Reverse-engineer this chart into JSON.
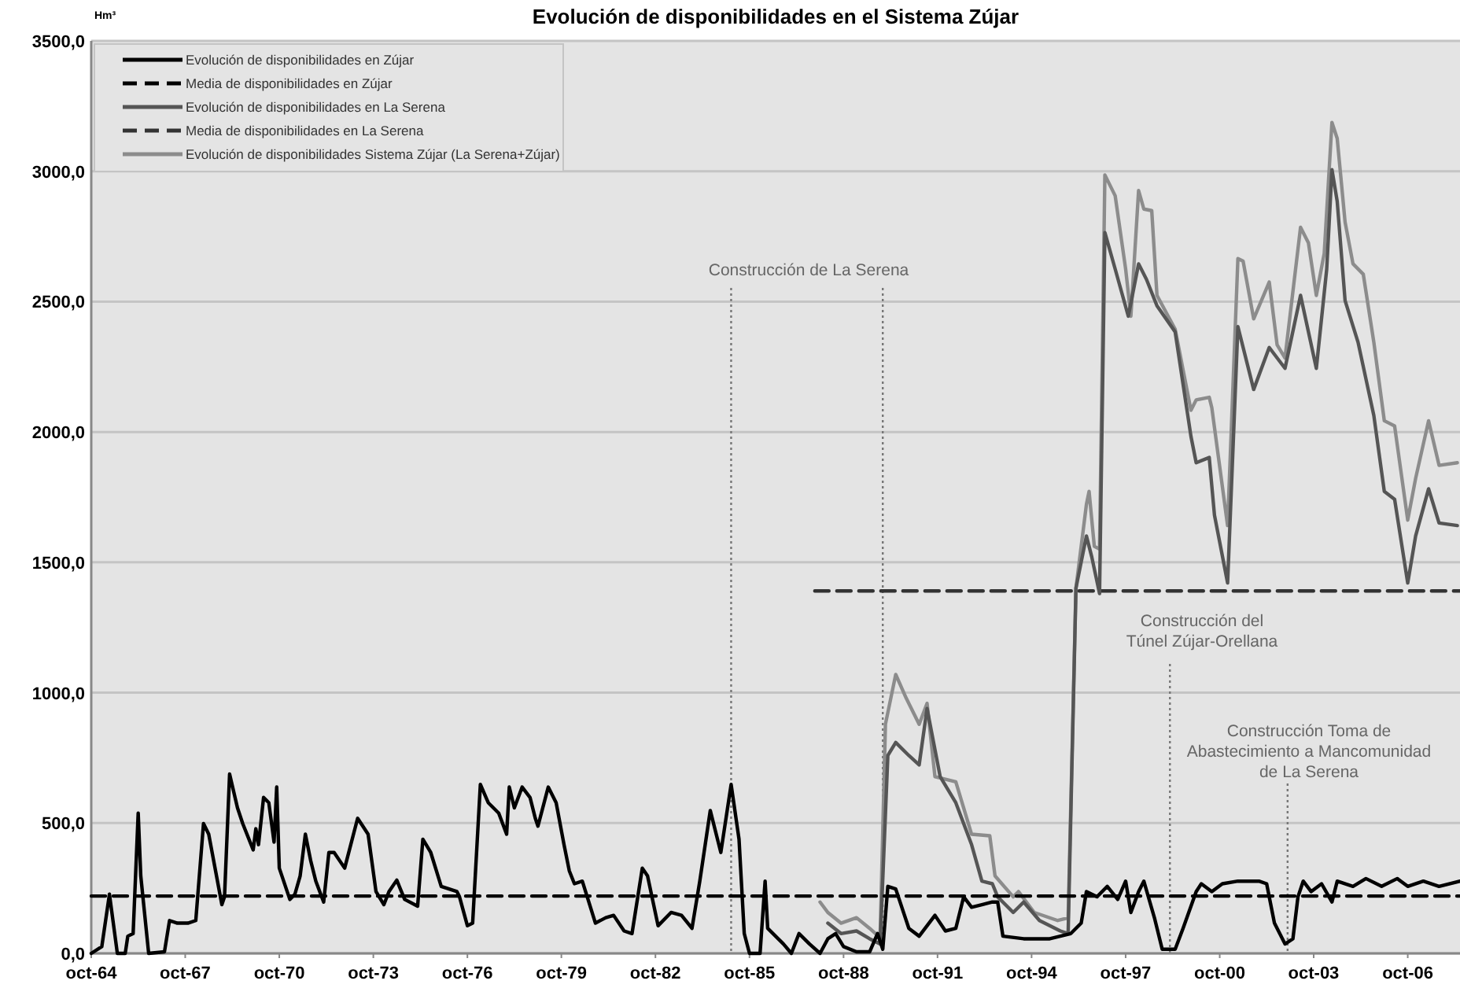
{
  "chart_data": {
    "type": "line",
    "title": "Evolución de disponibilidades en el Sistema Zújar",
    "ylabel": "Hm³",
    "xlim": [
      "1964-10",
      "2008-06"
    ],
    "ylim": [
      0,
      3500
    ],
    "xticks": [
      {
        "value": "1964-10",
        "label": "oct-64"
      },
      {
        "value": "1967-10",
        "label": "oct-67"
      },
      {
        "value": "1970-10",
        "label": "oct-70"
      },
      {
        "value": "1973-10",
        "label": "oct-73"
      },
      {
        "value": "1976-10",
        "label": "oct-76"
      },
      {
        "value": "1979-10",
        "label": "oct-79"
      },
      {
        "value": "1982-10",
        "label": "oct-82"
      },
      {
        "value": "1985-10",
        "label": "oct-85"
      },
      {
        "value": "1988-10",
        "label": "oct-88"
      },
      {
        "value": "1991-10",
        "label": "oct-91"
      },
      {
        "value": "1994-10",
        "label": "oct-94"
      },
      {
        "value": "1997-10",
        "label": "oct-97"
      },
      {
        "value": "2000-10",
        "label": "oct-00"
      },
      {
        "value": "2003-10",
        "label": "oct-03"
      },
      {
        "value": "2006-10",
        "label": "oct-06"
      }
    ],
    "yticks": [
      {
        "value": 0,
        "label": "0,0"
      },
      {
        "value": 500,
        "label": "500,0"
      },
      {
        "value": 1000,
        "label": "1000,0"
      },
      {
        "value": 1500,
        "label": "1500,0"
      },
      {
        "value": 2000,
        "label": "2000,0"
      },
      {
        "value": 2500,
        "label": "2500,0"
      },
      {
        "value": 3000,
        "label": "3000,0"
      },
      {
        "value": 3500,
        "label": "3500,0"
      }
    ],
    "grid": "y",
    "legend": "top left",
    "line_style": "solid",
    "series": [
      {
        "name": "Evolución de disponibilidades en Zújar",
        "color": "#000000",
        "x": [
          "1964-10",
          "1965-02",
          "1965-05",
          "1965-08",
          "1965-11",
          "1965-12",
          "1966-02",
          "1966-04",
          "1966-05",
          "1966-06",
          "1966-08",
          "1967-02",
          "1967-04",
          "1967-07",
          "1967-11",
          "1968-02",
          "1968-05",
          "1968-07",
          "1968-12",
          "1969-01",
          "1969-03",
          "1969-06",
          "1969-08",
          "1969-12",
          "1970-01",
          "1970-02",
          "1970-04",
          "1970-06",
          "1970-08",
          "1970-09",
          "1970-10",
          "1971-02",
          "1971-04",
          "1971-06",
          "1971-08",
          "1971-10",
          "1971-12",
          "1972-03",
          "1972-05",
          "1972-07",
          "1972-11",
          "1973-04",
          "1973-08",
          "1973-11",
          "1974-02",
          "1974-04",
          "1974-07",
          "1974-10",
          "1975-03",
          "1975-05",
          "1975-08",
          "1975-12",
          "1976-06",
          "1976-07",
          "1976-10",
          "1976-12",
          "1977-03",
          "1977-06",
          "1977-10",
          "1978-01",
          "1978-02",
          "1978-04",
          "1978-07",
          "1978-10",
          "1978-12",
          "1979-01",
          "1979-05",
          "1979-08",
          "1979-11",
          "1980-01",
          "1980-03",
          "1980-06",
          "1980-11",
          "1981-03",
          "1981-06",
          "1981-10",
          "1982-01",
          "1982-05",
          "1982-07",
          "1982-11",
          "1983-04",
          "1983-08",
          "1983-12",
          "1984-03",
          "1984-07",
          "1984-11",
          "1985-03",
          "1985-06",
          "1985-08",
          "1985-10",
          "1986-02",
          "1986-04",
          "1986-05",
          "1986-11",
          "1987-02",
          "1987-05",
          "1987-09",
          "1988-01",
          "1988-04",
          "1988-07",
          "1988-10",
          "1989-03",
          "1989-08",
          "1989-11",
          "1990-01",
          "1990-03",
          "1990-06",
          "1990-11",
          "1991-03",
          "1991-09",
          "1992-01",
          "1992-05",
          "1992-08",
          "1992-11",
          "1993-03",
          "1993-07",
          "1993-09",
          "1993-11",
          "1994-07",
          "1995-05",
          "1996-01",
          "1996-05",
          "1996-07",
          "1996-11",
          "1997-03",
          "1997-07",
          "1997-10",
          "1997-12",
          "1998-03",
          "1998-05",
          "1998-09",
          "1998-12",
          "1999-05",
          "1999-08",
          "2000-01",
          "2000-03",
          "2000-07",
          "2000-11",
          "2001-05",
          "2002-01",
          "2002-04",
          "2002-07",
          "2002-11",
          "2003-02",
          "2003-04",
          "2003-06",
          "2003-09",
          "2004-01",
          "2004-05",
          "2004-07",
          "2005-01",
          "2005-06",
          "2005-12",
          "2006-06",
          "2006-10",
          "2007-04",
          "2007-10",
          "2008-06"
        ],
        "values": [
          0,
          26,
          227,
          0,
          0,
          66,
          76,
          538,
          297,
          197,
          0,
          6,
          126,
          116,
          116,
          126,
          498,
          457,
          187,
          217,
          688,
          558,
          498,
          397,
          478,
          417,
          598,
          578,
          427,
          638,
          327,
          207,
          227,
          297,
          457,
          357,
          277,
          197,
          387,
          387,
          327,
          518,
          457,
          237,
          187,
          237,
          281,
          207,
          181,
          438,
          387,
          257,
          237,
          217,
          106,
          116,
          648,
          578,
          538,
          457,
          638,
          558,
          638,
          598,
          518,
          488,
          638,
          578,
          417,
          317,
          267,
          277,
          116,
          137,
          146,
          86,
          76,
          327,
          297,
          106,
          157,
          146,
          96,
          277,
          548,
          387,
          648,
          438,
          76,
          0,
          0,
          277,
          96,
          36,
          0,
          76,
          36,
          0,
          56,
          76,
          26,
          6,
          6,
          76,
          16,
          257,
          247,
          96,
          66,
          146,
          86,
          96,
          217,
          177,
          187,
          197,
          197,
          66,
          56,
          56,
          76,
          116,
          237,
          217,
          257,
          207,
          277,
          157,
          237,
          277,
          137,
          16,
          16,
          96,
          237,
          267,
          237,
          267,
          277,
          277,
          267,
          116,
          36,
          56,
          217,
          277,
          237,
          267,
          197,
          277,
          257,
          287,
          257,
          287,
          257,
          277,
          257,
          277
        ]
      },
      {
        "name": "Media de disponibilidades en Zújar",
        "color": "#000000",
        "line_style": "dashed",
        "x": [
          "1964-10",
          "2008-06"
        ],
        "values": [
          220,
          220
        ]
      },
      {
        "name": "Evolución de disponibilidades en La Serena",
        "color": "#555555",
        "x": [
          "1988-04",
          "1988-09",
          "1989-03",
          "1989-08",
          "1989-12",
          "1990-03",
          "1990-06",
          "1990-11",
          "1991-03",
          "1991-06",
          "1991-11",
          "1992-05",
          "1992-11",
          "1993-03",
          "1993-07",
          "1993-09",
          "1994-03",
          "1994-07",
          "1995-01",
          "1995-09",
          "1995-12",
          "1996-03",
          "1996-07",
          "1996-09",
          "1996-12",
          "1997-02",
          "1997-06",
          "1997-11",
          "1998-03",
          "1998-06",
          "1998-10",
          "1999-05",
          "1999-11",
          "2000-01",
          "2000-06",
          "2000-08",
          "2001-01",
          "2001-05",
          "2001-11",
          "2002-05",
          "2002-11",
          "2003-05",
          "2003-11",
          "2004-03",
          "2004-05",
          "2004-07",
          "2004-10",
          "2005-03",
          "2005-09",
          "2006-01",
          "2006-05",
          "2006-10",
          "2007-01",
          "2007-06",
          "2007-10",
          "2008-05"
        ],
        "values": [
          116,
          76,
          86,
          56,
          36,
          759,
          809,
          759,
          723,
          939,
          678,
          578,
          417,
          277,
          267,
          217,
          157,
          197,
          126,
          86,
          76,
          1401,
          1601,
          1521,
          1380,
          2765,
          2625,
          2444,
          2645,
          2585,
          2484,
          2384,
          1983,
          1882,
          1902,
          1681,
          1421,
          2404,
          2163,
          2324,
          2244,
          2524,
          2244,
          2625,
          3006,
          2885,
          2504,
          2344,
          2063,
          1772,
          1742,
          1421,
          1601,
          1782,
          1651,
          1641
        ]
      },
      {
        "name": "Media de disponibilidades en La Serena",
        "color": "#333333",
        "line_style": "dashed",
        "x": [
          "1987-11",
          "2008-06"
        ],
        "values": [
          1390,
          1390
        ]
      },
      {
        "name": "Evolución de disponibilidades Sistema Zújar (La Serena+Zújar)",
        "color": "#8c8c8c",
        "x": [
          "1988-01",
          "1988-04",
          "1988-09",
          "1989-03",
          "1989-08",
          "1989-12",
          "1990-02",
          "1990-06",
          "1990-10",
          "1991-03",
          "1991-06",
          "1991-09",
          "1992-05",
          "1992-11",
          "1993-06",
          "1993-08",
          "1994-03",
          "1994-05",
          "1994-11",
          "1995-08",
          "1995-12",
          "1996-03",
          "1996-07",
          "1996-08",
          "1996-10",
          "1996-12",
          "1997-02",
          "1997-06",
          "1997-10",
          "1997-12",
          "1998-03",
          "1998-05",
          "1998-08",
          "1998-10",
          "1999-05",
          "1999-11",
          "2000-01",
          "2000-06",
          "2000-07",
          "2001-01",
          "2001-05",
          "2001-07",
          "2001-11",
          "2002-05",
          "2002-08",
          "2002-11",
          "2003-05",
          "2003-08",
          "2003-11",
          "2004-02",
          "2004-05",
          "2004-07",
          "2004-10",
          "2005-01",
          "2005-05",
          "2005-09",
          "2006-01",
          "2006-05",
          "2006-10",
          "2007-01",
          "2007-06",
          "2007-10",
          "2008-05"
        ],
        "values": [
          197,
          157,
          116,
          137,
          96,
          60,
          879,
          1070,
          979,
          879,
          959,
          678,
          658,
          457,
          451,
          297,
          217,
          237,
          157,
          126,
          136,
          1401,
          1722,
          1772,
          1561,
          1551,
          2986,
          2906,
          2625,
          2444,
          2926,
          2855,
          2849,
          2524,
          2394,
          2083,
          2123,
          2133,
          2093,
          1641,
          2665,
          2655,
          2434,
          2575,
          2334,
          2284,
          2785,
          2725,
          2524,
          2685,
          3187,
          3126,
          2805,
          2645,
          2605,
          2344,
          2043,
          2023,
          1662,
          1822,
          2043,
          1872,
          1882
        ]
      }
    ],
    "ref_lines": [
      {
        "axis": "x",
        "value": "1985-03",
        "color": "#777777",
        "line_style": "dotted"
      },
      {
        "axis": "x",
        "value": "1990-01",
        "color": "#777777",
        "line_style": "dotted"
      },
      {
        "axis": "x",
        "value": "1999-03",
        "color": "#777777",
        "line_style": "dotted"
      },
      {
        "axis": "x",
        "value": "2002-12",
        "color": "#777777",
        "line_style": "dotted"
      }
    ],
    "annotations": [
      "Construcción de La Serena",
      "Construcción del\nTúnel Zújar-Orellana",
      "Construcción Toma de\nAbastecimiento a Mancomunidad\nde La Serena"
    ]
  }
}
